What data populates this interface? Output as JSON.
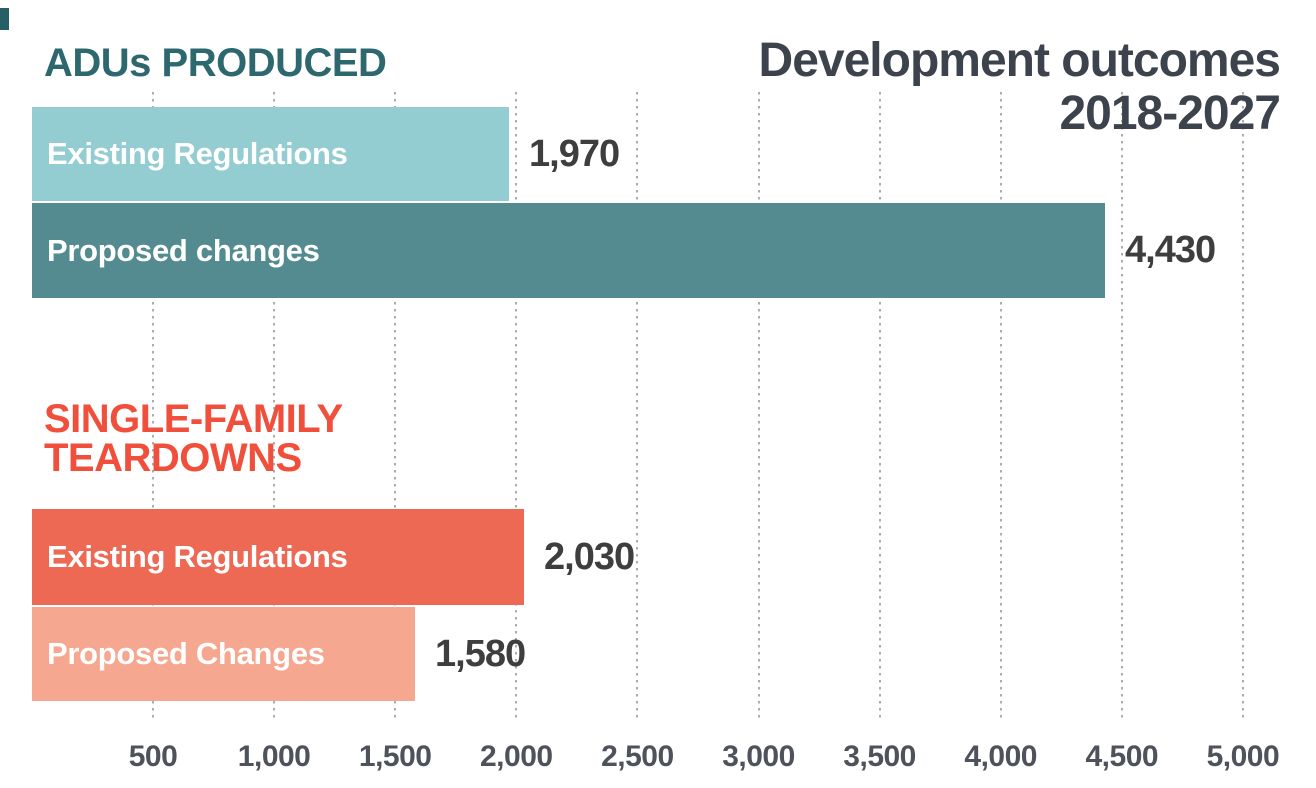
{
  "title": {
    "line1": "Development outcomes",
    "line2": "2018-2027",
    "color": "#3d434d"
  },
  "chart_data": {
    "type": "bar",
    "orientation": "horizontal",
    "title": "Development outcomes 2018-2027",
    "x_axis": {
      "range": [
        0,
        5000
      ],
      "ticks": [
        500,
        1000,
        1500,
        2000,
        2500,
        3000,
        3500,
        4000,
        4500,
        5000
      ],
      "tick_labels": [
        "500",
        "1,000",
        "1,500",
        "2,000",
        "2,500",
        "3,000",
        "3,500",
        "4,000",
        "4,500",
        "5,000"
      ],
      "grid": "dotted-vertical",
      "grid_color": "#a9adb2",
      "label_color": "#4e525a"
    },
    "value_label_color": "#3e3e3e",
    "groups": [
      {
        "heading": "ADUs PRODUCED",
        "heading_lines": [
          "ADUs PRODUCED"
        ],
        "heading_color": "#2c686e",
        "bars": [
          {
            "label": "Existing Regulations",
            "value": 1970,
            "value_label": "1,970",
            "color": "#93cdd1",
            "label_color": "#ffffff"
          },
          {
            "label": "Proposed changes",
            "value": 4430,
            "value_label": "4,430",
            "color": "#538b90",
            "label_color": "#ffffff"
          }
        ]
      },
      {
        "heading": "SINGLE-FAMILY TEARDOWNS",
        "heading_lines": [
          "SINGLE-FAMILY",
          "TEARDOWNS"
        ],
        "heading_color": "#f04f3b",
        "bars": [
          {
            "label": "Existing Regulations",
            "value": 2030,
            "value_label": "2,030",
            "color": "#ee6953",
            "label_color": "#ffffff"
          },
          {
            "label": "Proposed Changes",
            "value": 1580,
            "value_label": "1,580",
            "color": "#f6a78f",
            "label_color": "#ffffff"
          }
        ]
      }
    ],
    "corner_mark_color": "#265f66"
  }
}
